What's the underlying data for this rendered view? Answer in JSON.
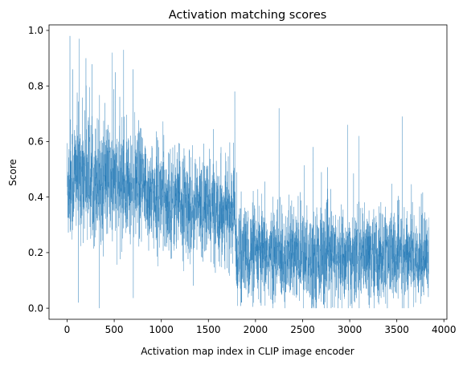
{
  "chart_data": {
    "type": "line",
    "title": "Activation matching scores",
    "xlabel": "Activation map index in CLIP image encoder",
    "ylabel": "Score",
    "xlim": [
      -192,
      4032
    ],
    "ylim": [
      -0.04,
      1.02
    ],
    "xticks": [
      0,
      500,
      1000,
      1500,
      2000,
      2500,
      3000,
      3500,
      4000
    ],
    "xtick_labels": [
      "0",
      "500",
      "1000",
      "1500",
      "2000",
      "2500",
      "3000",
      "3500",
      "4000"
    ],
    "yticks": [
      0.0,
      0.2,
      0.4,
      0.6,
      0.8,
      1.0
    ],
    "ytick_labels": [
      "0.0",
      "0.2",
      "0.4",
      "0.6",
      "0.8",
      "1.0"
    ],
    "grid": false,
    "series": [
      {
        "color": "#1f77b4",
        "n_points": 3840,
        "mean_profile": {
          "x": [
            0,
            100,
            300,
            500,
            700,
            900,
            1100,
            1300,
            1500,
            1700,
            1780,
            1800,
            2000,
            2500,
            3000,
            3500,
            3840
          ],
          "y": [
            0.44,
            0.49,
            0.47,
            0.45,
            0.44,
            0.41,
            0.39,
            0.37,
            0.36,
            0.35,
            0.34,
            0.2,
            0.19,
            0.185,
            0.18,
            0.185,
            0.19
          ]
        },
        "spread_profile": {
          "x": [
            0,
            1800,
            3840
          ],
          "y": [
            0.11,
            0.085,
            0.085
          ]
        },
        "extremes": [
          {
            "x": 30,
            "y": 0.98
          },
          {
            "x": 60,
            "y": 0.86
          },
          {
            "x": 130,
            "y": 0.97
          },
          {
            "x": 200,
            "y": 0.9
          },
          {
            "x": 480,
            "y": 0.92
          },
          {
            "x": 600,
            "y": 0.93
          },
          {
            "x": 700,
            "y": 0.86
          },
          {
            "x": 120,
            "y": 0.02
          },
          {
            "x": 340,
            "y": 0.0
          },
          {
            "x": 1780,
            "y": 0.78
          },
          {
            "x": 2250,
            "y": 0.72
          },
          {
            "x": 2980,
            "y": 0.66
          },
          {
            "x": 3100,
            "y": 0.62
          },
          {
            "x": 3560,
            "y": 0.69
          },
          {
            "x": 1850,
            "y": 0.02
          },
          {
            "x": 3700,
            "y": 0.02
          }
        ]
      }
    ]
  }
}
